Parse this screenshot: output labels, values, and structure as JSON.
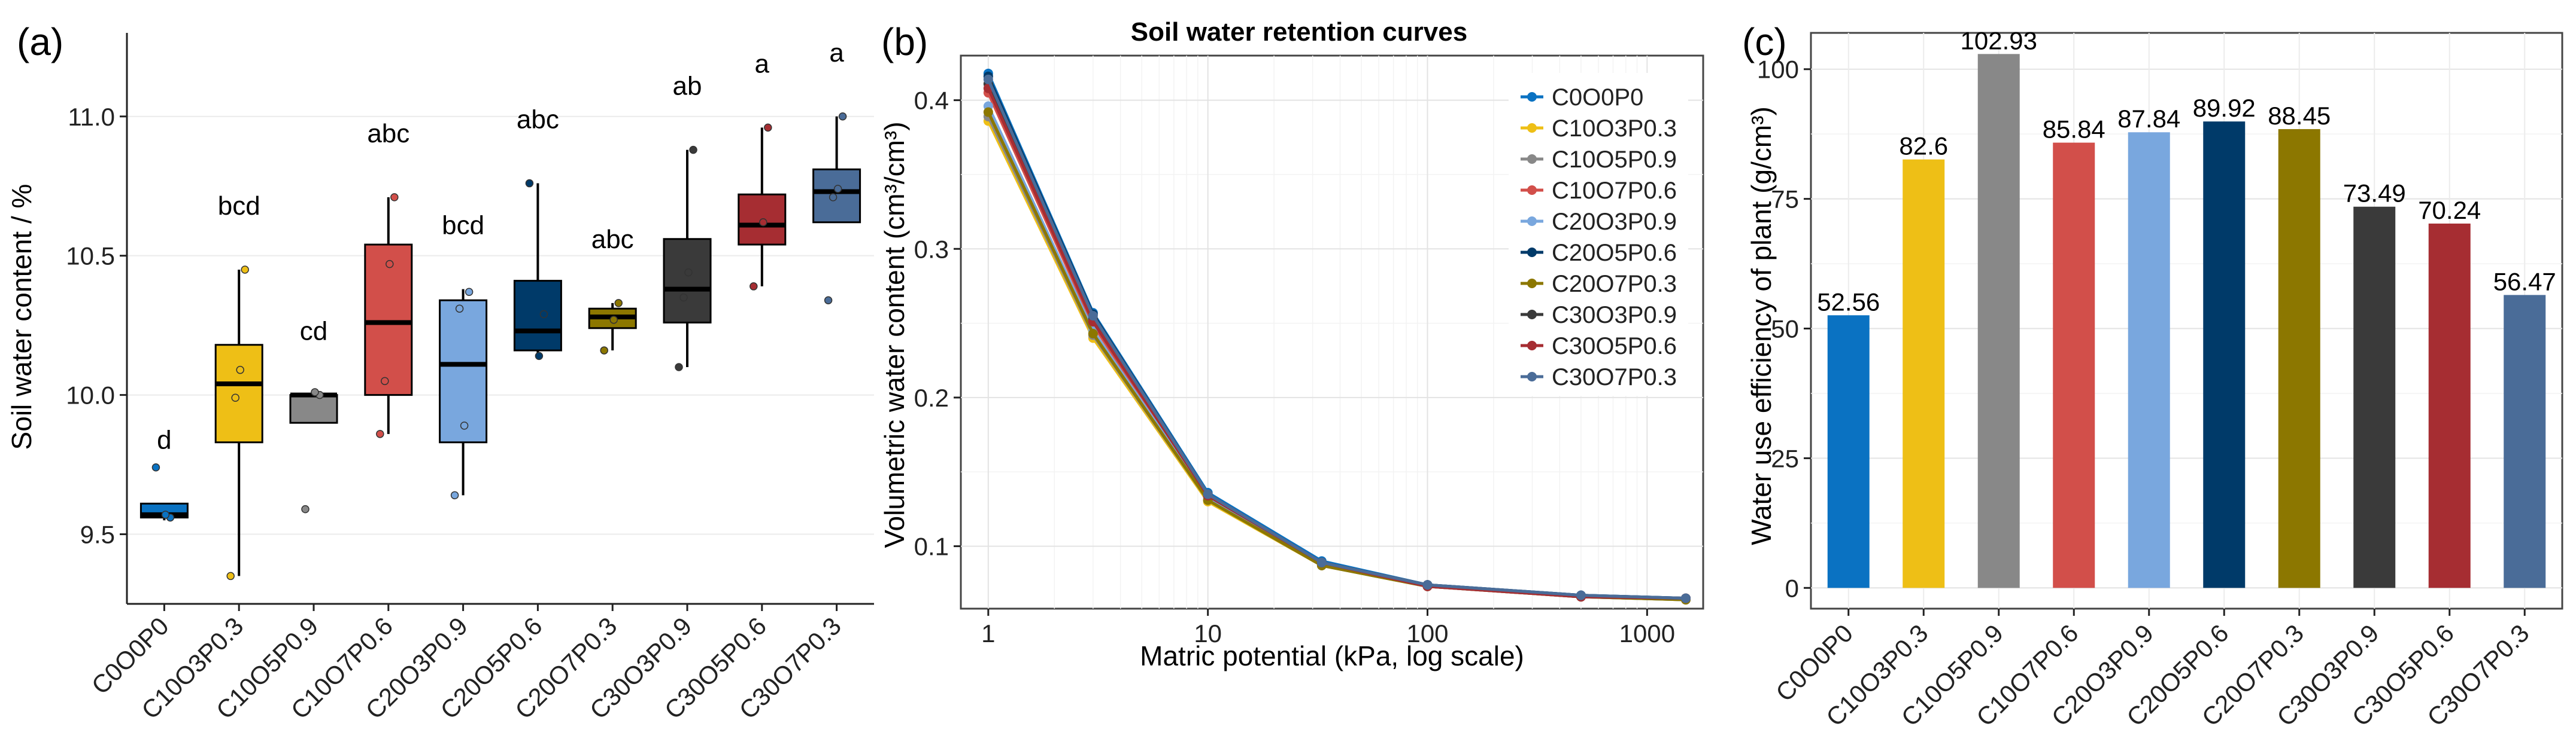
{
  "panel_labels": {
    "a": "(a)",
    "b": "(b)",
    "c": "(c)"
  },
  "treatment_colors": {
    "C0O0P0": "#0a72c2",
    "C10O3P0.3": "#eebf16",
    "C10O5P0.9": "#888888",
    "C10O7P0.6": "#d24f4a",
    "C20O3P0.9": "#79a7de",
    "C20O5P0.6": "#003a69",
    "C20O7P0.3": "#8c7700",
    "C30O3P0.9": "#3a3a3a",
    "C30O5P0.6": "#a62d32",
    "C30O7P0.3": "#4a6c98"
  },
  "chart_data": [
    {
      "id": "a",
      "type": "box",
      "title": "",
      "xlabel": "",
      "ylabel": "Soil water content / %",
      "ylim": [
        9.25,
        11.3
      ],
      "yticks": [
        "9.5",
        "10.0",
        "10.5",
        "11.0"
      ],
      "categories": [
        "C0O0P0",
        "C10O3P0.3",
        "C10O5P0.9",
        "C10O7P0.6",
        "C20O3P0.9",
        "C20O5P0.6",
        "C20O7P0.3",
        "C30O3P0.9",
        "C30O5P0.6",
        "C30O7P0.3"
      ],
      "boxes": [
        {
          "min": 9.55,
          "q1": 9.56,
          "median": 9.57,
          "q3": 9.61,
          "max": 9.61,
          "points": [
            9.74,
            9.56,
            9.57
          ],
          "letter": "d"
        },
        {
          "min": 9.35,
          "q1": 9.83,
          "median": 10.04,
          "q3": 10.18,
          "max": 10.45,
          "points": [
            9.35,
            10.45,
            10.09,
            9.99
          ],
          "letter": "bcd"
        },
        {
          "min": 9.9,
          "q1": 9.9,
          "median": 10.0,
          "q3": 10.0,
          "max": 10.0,
          "points": [
            9.59,
            10.0,
            10.01
          ],
          "letter": "cd"
        },
        {
          "min": 9.86,
          "q1": 10.0,
          "median": 10.26,
          "q3": 10.54,
          "max": 10.71,
          "points": [
            9.86,
            10.71,
            10.47,
            10.05
          ],
          "letter": "abc"
        },
        {
          "min": 9.64,
          "q1": 9.83,
          "median": 10.11,
          "q3": 10.34,
          "max": 10.38,
          "points": [
            9.64,
            10.37,
            9.89,
            10.31
          ],
          "letter": "bcd"
        },
        {
          "min": 10.14,
          "q1": 10.16,
          "median": 10.23,
          "q3": 10.41,
          "max": 10.76,
          "points": [
            10.76,
            10.29,
            10.14
          ],
          "letter": "abc"
        },
        {
          "min": 10.16,
          "q1": 10.24,
          "median": 10.28,
          "q3": 10.31,
          "max": 10.33,
          "points": [
            10.16,
            10.33,
            10.27
          ],
          "letter": "abc"
        },
        {
          "min": 10.1,
          "q1": 10.26,
          "median": 10.38,
          "q3": 10.56,
          "max": 10.88,
          "points": [
            10.1,
            10.88,
            10.44,
            10.35
          ],
          "letter": "ab"
        },
        {
          "min": 10.39,
          "q1": 10.54,
          "median": 10.61,
          "q3": 10.72,
          "max": 10.96,
          "points": [
            10.39,
            10.96,
            10.62
          ],
          "letter": "a"
        },
        {
          "min": 10.62,
          "q1": 10.62,
          "median": 10.73,
          "q3": 10.81,
          "max": 11.0,
          "points": [
            10.34,
            11.0,
            10.74,
            10.71
          ],
          "letter": "a"
        }
      ]
    },
    {
      "id": "b",
      "type": "line",
      "title": "Soil water retention curves",
      "xlabel": "Matric potential (kPa, log scale)",
      "ylabel": "Volumetric water content (cm³/cm³)",
      "xscale": "log",
      "xlim": [
        0.75,
        1800
      ],
      "ylim": [
        0.058,
        0.43
      ],
      "xticks": [
        "1",
        "10",
        "100",
        "1000"
      ],
      "yticks": [
        "0.1",
        "0.2",
        "0.3",
        "0.4"
      ],
      "x": [
        1,
        3,
        10,
        33,
        100,
        500,
        1500
      ],
      "legend": "top-right",
      "series": [
        {
          "name": "C0O0P0",
          "values": [
            0.418,
            0.257,
            0.136,
            0.09,
            0.074,
            0.067,
            0.065
          ]
        },
        {
          "name": "C10O3P0.3",
          "values": [
            0.386,
            0.24,
            0.13,
            0.087,
            0.073,
            0.066,
            0.064
          ]
        },
        {
          "name": "C10O5P0.9",
          "values": [
            0.389,
            0.242,
            0.131,
            0.087,
            0.073,
            0.066,
            0.064
          ]
        },
        {
          "name": "C10O7P0.6",
          "values": [
            0.405,
            0.249,
            0.133,
            0.088,
            0.073,
            0.066,
            0.065
          ]
        },
        {
          "name": "C20O3P0.9",
          "values": [
            0.396,
            0.245,
            0.132,
            0.088,
            0.073,
            0.066,
            0.064
          ]
        },
        {
          "name": "C20O5P0.6",
          "values": [
            0.416,
            0.256,
            0.135,
            0.089,
            0.074,
            0.067,
            0.065
          ]
        },
        {
          "name": "C20O7P0.3",
          "values": [
            0.392,
            0.243,
            0.131,
            0.087,
            0.073,
            0.066,
            0.064
          ]
        },
        {
          "name": "C30O3P0.9",
          "values": [
            0.411,
            0.253,
            0.134,
            0.089,
            0.074,
            0.066,
            0.065
          ]
        },
        {
          "name": "C30O5P0.6",
          "values": [
            0.408,
            0.251,
            0.134,
            0.089,
            0.073,
            0.066,
            0.065
          ]
        },
        {
          "name": "C30O7P0.3",
          "values": [
            0.414,
            0.255,
            0.135,
            0.089,
            0.074,
            0.067,
            0.065
          ]
        }
      ]
    },
    {
      "id": "c",
      "type": "bar",
      "title": "",
      "xlabel": "",
      "ylabel": "Water use efficiency of plant (g/cm³)",
      "ylim": [
        -4,
        107
      ],
      "yticks": [
        "0",
        "25",
        "50",
        "75",
        "100"
      ],
      "categories": [
        "C0O0P0",
        "C10O3P0.3",
        "C10O5P0.9",
        "C10O7P0.6",
        "C20O3P0.9",
        "C20O5P0.6",
        "C20O7P0.3",
        "C30O3P0.9",
        "C30O5P0.6",
        "C30O7P0.3"
      ],
      "values": [
        52.56,
        82.6,
        102.93,
        85.84,
        87.84,
        89.92,
        88.45,
        73.49,
        70.24,
        56.47
      ],
      "value_labels": [
        "52.56",
        "82.6",
        "102.93",
        "85.84",
        "87.84",
        "89.92",
        "88.45",
        "73.49",
        "70.24",
        "56.47"
      ]
    }
  ]
}
